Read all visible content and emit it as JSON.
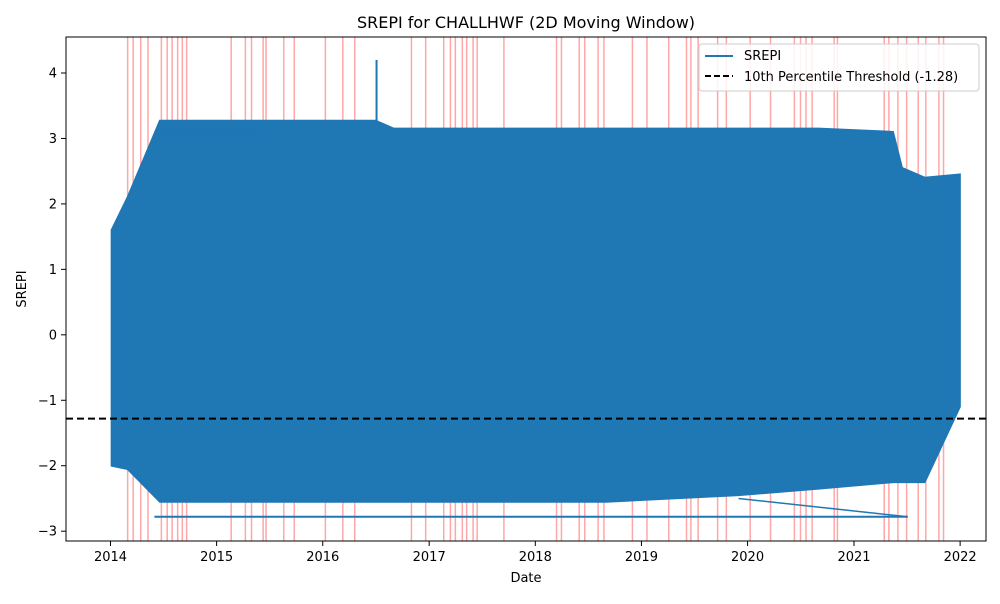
{
  "chart_data": {
    "type": "line",
    "title": "SREPI for CHALLHWF (2D Moving Window)",
    "xlabel": "Date",
    "ylabel": "SREPI",
    "xlim": [
      "2013-08-01",
      "2022-03-31"
    ],
    "ylim": [
      -3.15,
      4.55
    ],
    "x_ticks": [
      "2014",
      "2015",
      "2016",
      "2017",
      "2018",
      "2019",
      "2020",
      "2021",
      "2022"
    ],
    "y_ticks": [
      -3,
      -2,
      -1,
      0,
      1,
      2,
      3,
      4
    ],
    "grid": false,
    "legend_position": "top-right",
    "series": [
      {
        "name": "SREPI",
        "color": "#1f77b4",
        "band": [
          {
            "x": "2014-01-05",
            "low": -2.0,
            "high": 1.6
          },
          {
            "x": "2014-03-01",
            "low": -2.05,
            "high": 2.1
          },
          {
            "x": "2014-06-20",
            "low": -2.55,
            "high": 3.27
          },
          {
            "x": "2015-06-01",
            "low": -2.55,
            "high": 3.27
          },
          {
            "x": "2016-07-01",
            "low": -2.55,
            "high": 3.27
          },
          {
            "x": "2016-09-01",
            "low": -2.55,
            "high": 3.15
          },
          {
            "x": "2018-09-01",
            "low": -2.55,
            "high": 3.15
          },
          {
            "x": "2019-12-01",
            "low": -2.45,
            "high": 3.15
          },
          {
            "x": "2020-09-01",
            "low": -2.35,
            "high": 3.15
          },
          {
            "x": "2021-05-15",
            "low": -2.25,
            "high": 3.1
          },
          {
            "x": "2021-06-15",
            "low": -2.25,
            "high": 2.55
          },
          {
            "x": "2021-09-01",
            "low": -2.25,
            "high": 2.4
          },
          {
            "x": "2021-12-31",
            "low": -1.1,
            "high": 2.45
          }
        ],
        "outliers": [
          {
            "x": "2016-07-04",
            "y": 4.2
          },
          {
            "x": "2014-06-01",
            "y": -2.78
          },
          {
            "x": "2021-07-05",
            "y": -2.78
          }
        ]
      },
      {
        "name": "10th Percentile Threshold (-1.28)",
        "color": "#000000",
        "style": "dashed",
        "y": -1.28
      }
    ],
    "drought_events": {
      "color": "#ff0000",
      "dates": [
        "2014-03-01",
        "2014-03-20",
        "2014-04-15",
        "2014-05-10",
        "2014-06-25",
        "2014-07-15",
        "2014-08-01",
        "2014-08-20",
        "2014-09-05",
        "2014-09-20",
        "2015-02-20",
        "2015-04-10",
        "2015-05-01",
        "2015-06-10",
        "2015-06-20",
        "2015-08-20",
        "2015-09-25",
        "2016-01-10",
        "2016-03-10",
        "2016-04-20",
        "2016-11-01",
        "2016-12-20",
        "2017-02-20",
        "2017-03-15",
        "2017-04-01",
        "2017-04-25",
        "2017-05-10",
        "2017-06-01",
        "2017-06-15",
        "2017-09-15",
        "2018-03-15",
        "2018-04-01",
        "2018-06-01",
        "2018-06-20",
        "2018-08-05",
        "2018-08-25",
        "2018-12-01",
        "2019-01-20",
        "2019-04-05",
        "2019-06-05",
        "2019-06-20",
        "2019-07-15",
        "2019-09-20",
        "2019-10-20",
        "2020-01-10",
        "2020-03-20",
        "2020-06-10",
        "2020-07-01",
        "2020-07-20",
        "2020-08-10",
        "2020-10-25",
        "2020-11-05",
        "2021-04-15",
        "2021-05-01",
        "2021-06-01",
        "2021-07-01",
        "2021-08-10",
        "2021-09-05",
        "2021-10-20",
        "2021-11-05"
      ]
    }
  }
}
